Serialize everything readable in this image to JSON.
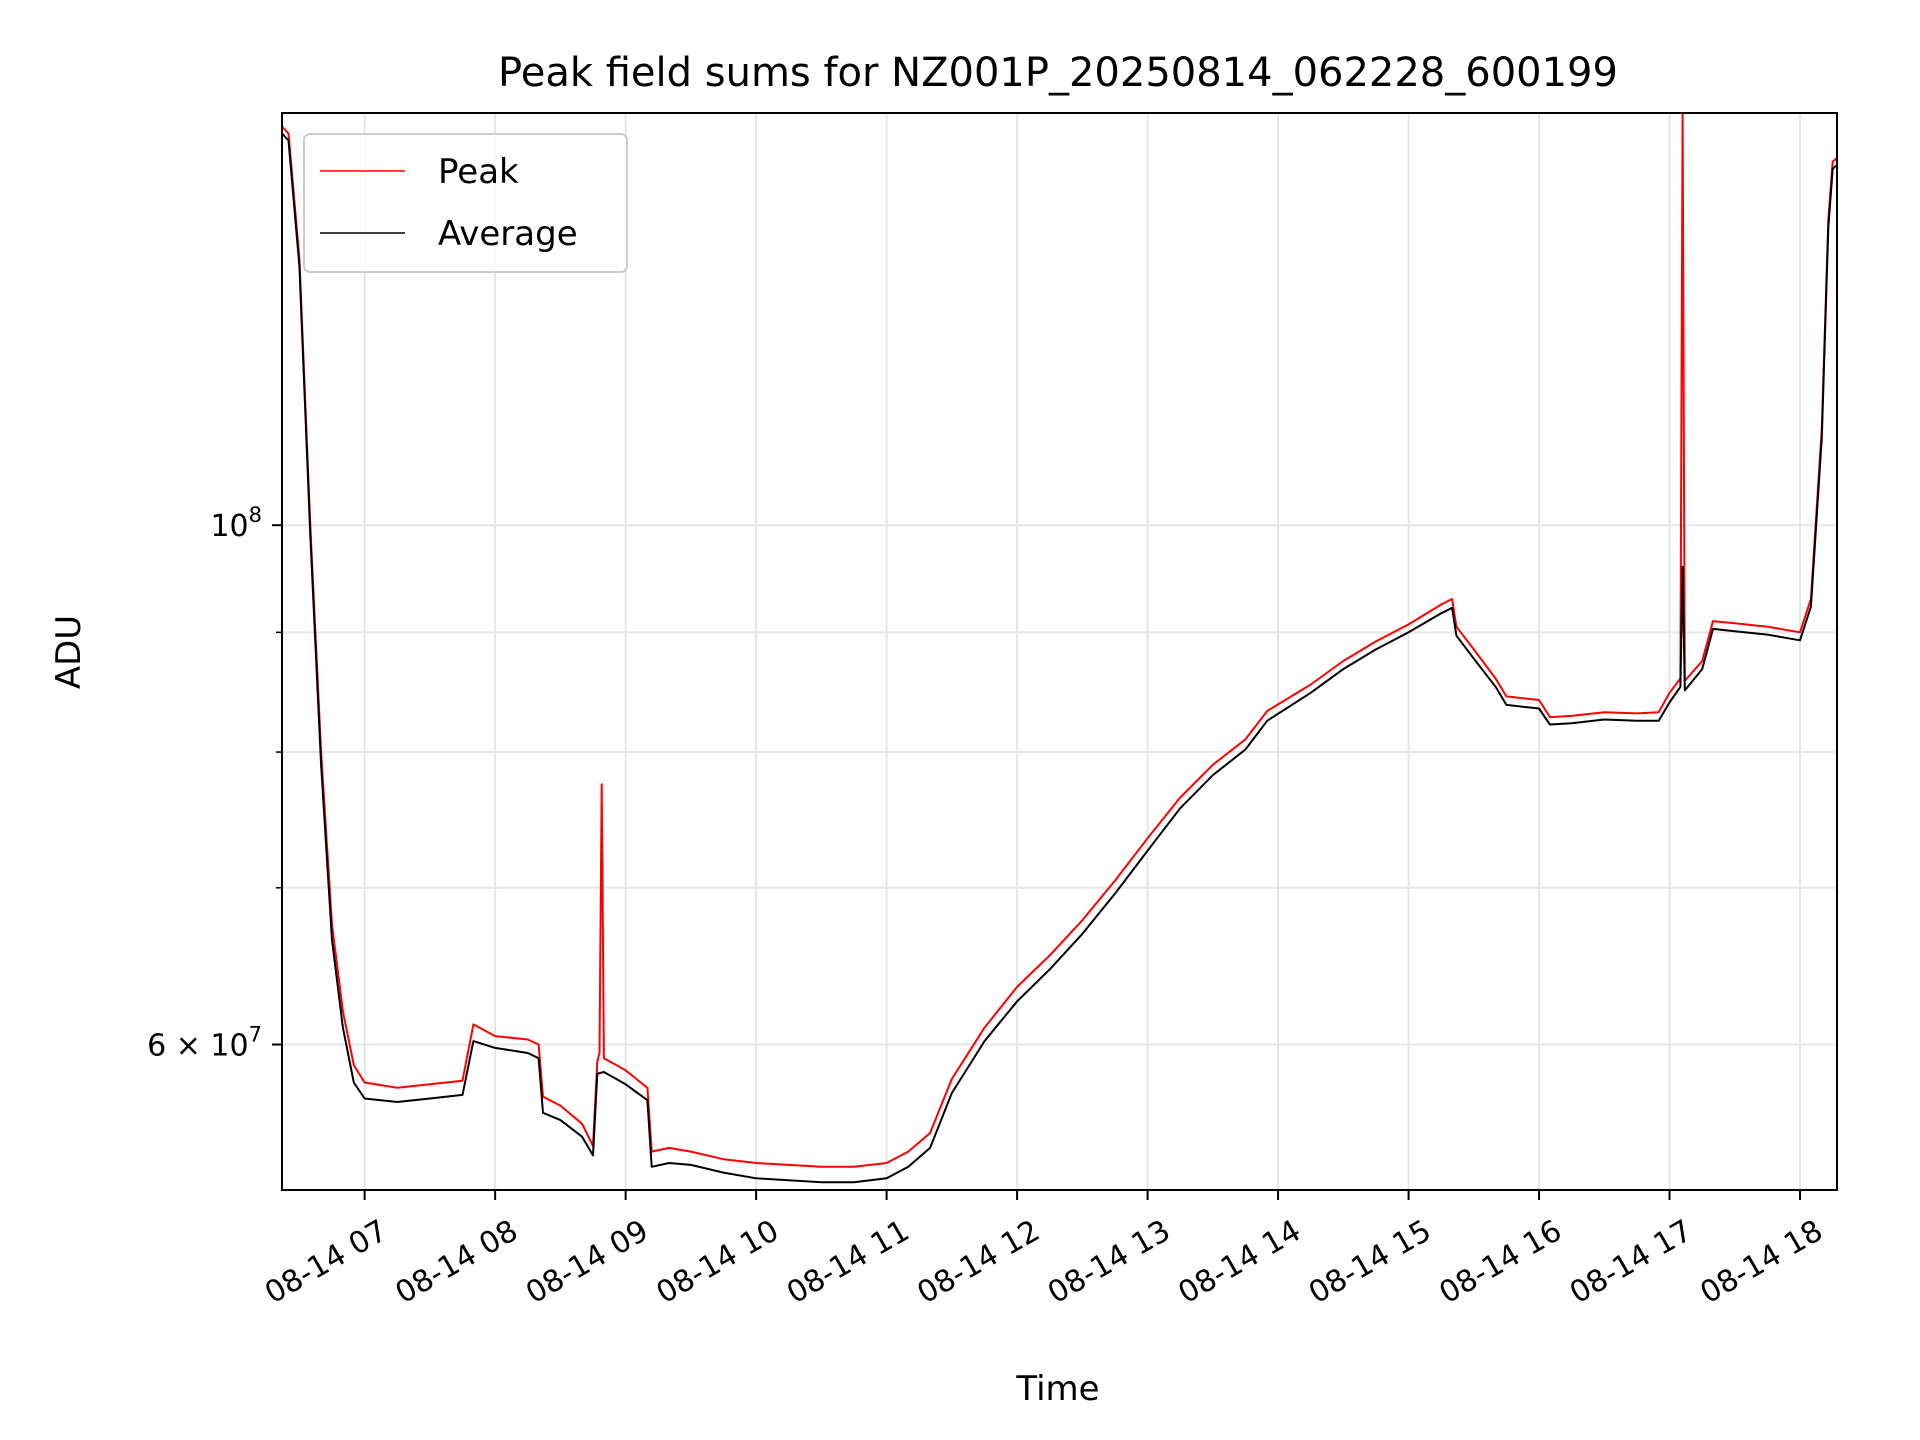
{
  "chart_data": {
    "type": "line",
    "title": "Peak field sums for NZ001P_20250814_062228_600199",
    "xlabel": "Time",
    "ylabel": "ADU",
    "yscale": "log",
    "xlim": [
      "2025-08-14 06:22",
      "2025-08-14 18:17"
    ],
    "ylim": [
      52000000,
      150000000
    ],
    "grid": true,
    "legend_position": "top-left",
    "x_ticks": [
      {
        "value": "2025-08-14 07:00",
        "label": "08-14 07"
      },
      {
        "value": "2025-08-14 08:00",
        "label": "08-14 08"
      },
      {
        "value": "2025-08-14 09:00",
        "label": "08-14 09"
      },
      {
        "value": "2025-08-14 10:00",
        "label": "08-14 10"
      },
      {
        "value": "2025-08-14 11:00",
        "label": "08-14 11"
      },
      {
        "value": "2025-08-14 12:00",
        "label": "08-14 12"
      },
      {
        "value": "2025-08-14 13:00",
        "label": "08-14 13"
      },
      {
        "value": "2025-08-14 14:00",
        "label": "08-14 14"
      },
      {
        "value": "2025-08-14 15:00",
        "label": "08-14 15"
      },
      {
        "value": "2025-08-14 16:00",
        "label": "08-14 16"
      },
      {
        "value": "2025-08-14 17:00",
        "label": "08-14 17"
      },
      {
        "value": "2025-08-14 18:00",
        "label": "08-14 18"
      }
    ],
    "y_ticks": [
      {
        "value": 100000000,
        "label_base": "10",
        "label_exp": "8"
      },
      {
        "value": 60000000,
        "label_base": "6 × 10",
        "label_exp": "7"
      }
    ],
    "y_minor_ticks": [
      70000000,
      80000000,
      90000000
    ],
    "series": [
      {
        "name": "Peak",
        "color": "#ff0000",
        "points": [
          [
            "2025-08-14 06:22",
            148000000
          ],
          [
            "2025-08-14 06:25",
            147000000
          ],
          [
            "2025-08-14 06:30",
            130000000
          ],
          [
            "2025-08-14 06:35",
            100000000
          ],
          [
            "2025-08-14 06:40",
            80000000
          ],
          [
            "2025-08-14 06:45",
            67500000
          ],
          [
            "2025-08-14 06:50",
            62000000
          ],
          [
            "2025-08-14 06:55",
            58800000
          ],
          [
            "2025-08-14 07:00",
            57800000
          ],
          [
            "2025-08-14 07:15",
            57500000
          ],
          [
            "2025-08-14 07:30",
            57700000
          ],
          [
            "2025-08-14 07:45",
            57900000
          ],
          [
            "2025-08-14 07:50",
            61200000
          ],
          [
            "2025-08-14 08:00",
            60500000
          ],
          [
            "2025-08-14 08:15",
            60300000
          ],
          [
            "2025-08-14 08:20",
            60000000
          ],
          [
            "2025-08-14 08:22",
            57000000
          ],
          [
            "2025-08-14 08:30",
            56500000
          ],
          [
            "2025-08-14 08:40",
            55500000
          ],
          [
            "2025-08-14 08:45",
            54300000
          ],
          [
            "2025-08-14 08:47",
            59000000
          ],
          [
            "2025-08-14 08:48",
            59500000
          ],
          [
            "2025-08-14 08:49",
            77500000
          ],
          [
            "2025-08-14 08:50",
            59200000
          ],
          [
            "2025-08-14 09:00",
            58500000
          ],
          [
            "2025-08-14 09:10",
            57500000
          ],
          [
            "2025-08-14 09:12",
            54000000
          ],
          [
            "2025-08-14 09:20",
            54200000
          ],
          [
            "2025-08-14 09:30",
            54000000
          ],
          [
            "2025-08-14 09:45",
            53600000
          ],
          [
            "2025-08-14 10:00",
            53400000
          ],
          [
            "2025-08-14 10:15",
            53300000
          ],
          [
            "2025-08-14 10:30",
            53200000
          ],
          [
            "2025-08-14 10:45",
            53200000
          ],
          [
            "2025-08-14 11:00",
            53400000
          ],
          [
            "2025-08-14 11:10",
            54000000
          ],
          [
            "2025-08-14 11:20",
            55000000
          ],
          [
            "2025-08-14 11:30",
            58000000
          ],
          [
            "2025-08-14 11:45",
            61000000
          ],
          [
            "2025-08-14 12:00",
            63500000
          ],
          [
            "2025-08-14 12:15",
            65500000
          ],
          [
            "2025-08-14 12:30",
            67800000
          ],
          [
            "2025-08-14 12:45",
            70500000
          ],
          [
            "2025-08-14 13:00",
            73500000
          ],
          [
            "2025-08-14 13:15",
            76500000
          ],
          [
            "2025-08-14 13:30",
            79000000
          ],
          [
            "2025-08-14 13:45",
            81000000
          ],
          [
            "2025-08-14 13:55",
            83300000
          ],
          [
            "2025-08-14 14:15",
            85500000
          ],
          [
            "2025-08-14 14:30",
            87500000
          ],
          [
            "2025-08-14 14:45",
            89200000
          ],
          [
            "2025-08-14 15:00",
            90700000
          ],
          [
            "2025-08-14 15:15",
            92500000
          ],
          [
            "2025-08-14 15:20",
            93000000
          ],
          [
            "2025-08-14 15:22",
            90500000
          ],
          [
            "2025-08-14 15:30",
            88500000
          ],
          [
            "2025-08-14 15:40",
            86000000
          ],
          [
            "2025-08-14 15:45",
            84500000
          ],
          [
            "2025-08-14 16:00",
            84200000
          ],
          [
            "2025-08-14 16:05",
            82800000
          ],
          [
            "2025-08-14 16:15",
            82900000
          ],
          [
            "2025-08-14 16:30",
            83200000
          ],
          [
            "2025-08-14 16:45",
            83100000
          ],
          [
            "2025-08-14 16:55",
            83200000
          ],
          [
            "2025-08-14 17:00",
            84800000
          ],
          [
            "2025-08-14 17:05",
            86000000
          ],
          [
            "2025-08-14 17:06",
            150000000
          ],
          [
            "2025-08-14 17:07",
            85800000
          ],
          [
            "2025-08-14 17:15",
            87500000
          ],
          [
            "2025-08-14 17:20",
            91000000
          ],
          [
            "2025-08-14 17:30",
            90800000
          ],
          [
            "2025-08-14 17:45",
            90500000
          ],
          [
            "2025-08-14 18:00",
            90000000
          ],
          [
            "2025-08-14 18:05",
            93000000
          ],
          [
            "2025-08-14 18:10",
            110000000
          ],
          [
            "2025-08-14 18:13",
            135000000
          ],
          [
            "2025-08-14 18:15",
            143000000
          ],
          [
            "2025-08-14 18:17",
            143500000
          ]
        ]
      },
      {
        "name": "Average",
        "color": "#000000",
        "points": [
          [
            "2025-08-14 06:22",
            147000000
          ],
          [
            "2025-08-14 06:25",
            146000000
          ],
          [
            "2025-08-14 06:30",
            129000000
          ],
          [
            "2025-08-14 06:35",
            99000000
          ],
          [
            "2025-08-14 06:40",
            79000000
          ],
          [
            "2025-08-14 06:45",
            66500000
          ],
          [
            "2025-08-14 06:50",
            61000000
          ],
          [
            "2025-08-14 06:55",
            57800000
          ],
          [
            "2025-08-14 07:00",
            56900000
          ],
          [
            "2025-08-14 07:15",
            56700000
          ],
          [
            "2025-08-14 07:30",
            56900000
          ],
          [
            "2025-08-14 07:45",
            57100000
          ],
          [
            "2025-08-14 07:50",
            60200000
          ],
          [
            "2025-08-14 08:00",
            59800000
          ],
          [
            "2025-08-14 08:15",
            59500000
          ],
          [
            "2025-08-14 08:20",
            59200000
          ],
          [
            "2025-08-14 08:22",
            56100000
          ],
          [
            "2025-08-14 08:30",
            55700000
          ],
          [
            "2025-08-14 08:40",
            54800000
          ],
          [
            "2025-08-14 08:45",
            53800000
          ],
          [
            "2025-08-14 08:47",
            58300000
          ],
          [
            "2025-08-14 08:50",
            58400000
          ],
          [
            "2025-08-14 09:00",
            57700000
          ],
          [
            "2025-08-14 09:10",
            56800000
          ],
          [
            "2025-08-14 09:12",
            53200000
          ],
          [
            "2025-08-14 09:20",
            53400000
          ],
          [
            "2025-08-14 09:30",
            53300000
          ],
          [
            "2025-08-14 09:45",
            52900000
          ],
          [
            "2025-08-14 10:00",
            52600000
          ],
          [
            "2025-08-14 10:15",
            52500000
          ],
          [
            "2025-08-14 10:30",
            52400000
          ],
          [
            "2025-08-14 10:45",
            52400000
          ],
          [
            "2025-08-14 11:00",
            52600000
          ],
          [
            "2025-08-14 11:10",
            53200000
          ],
          [
            "2025-08-14 11:20",
            54200000
          ],
          [
            "2025-08-14 11:30",
            57200000
          ],
          [
            "2025-08-14 11:45",
            60200000
          ],
          [
            "2025-08-14 12:00",
            62600000
          ],
          [
            "2025-08-14 12:15",
            64600000
          ],
          [
            "2025-08-14 12:30",
            66900000
          ],
          [
            "2025-08-14 12:45",
            69600000
          ],
          [
            "2025-08-14 13:00",
            72600000
          ],
          [
            "2025-08-14 13:15",
            75700000
          ],
          [
            "2025-08-14 13:30",
            78200000
          ],
          [
            "2025-08-14 13:45",
            80200000
          ],
          [
            "2025-08-14 13:55",
            82500000
          ],
          [
            "2025-08-14 14:15",
            84800000
          ],
          [
            "2025-08-14 14:30",
            86800000
          ],
          [
            "2025-08-14 14:45",
            88500000
          ],
          [
            "2025-08-14 15:00",
            90000000
          ],
          [
            "2025-08-14 15:15",
            91700000
          ],
          [
            "2025-08-14 15:20",
            92200000
          ],
          [
            "2025-08-14 15:22",
            89700000
          ],
          [
            "2025-08-14 15:30",
            87700000
          ],
          [
            "2025-08-14 15:40",
            85300000
          ],
          [
            "2025-08-14 15:45",
            83800000
          ],
          [
            "2025-08-14 16:00",
            83500000
          ],
          [
            "2025-08-14 16:05",
            82200000
          ],
          [
            "2025-08-14 16:15",
            82300000
          ],
          [
            "2025-08-14 16:30",
            82600000
          ],
          [
            "2025-08-14 16:45",
            82500000
          ],
          [
            "2025-08-14 16:55",
            82500000
          ],
          [
            "2025-08-14 17:00",
            84000000
          ],
          [
            "2025-08-14 17:05",
            85300000
          ],
          [
            "2025-08-14 17:06",
            96000000
          ],
          [
            "2025-08-14 17:07",
            85000000
          ],
          [
            "2025-08-14 17:15",
            86800000
          ],
          [
            "2025-08-14 17:20",
            90300000
          ],
          [
            "2025-08-14 17:30",
            90100000
          ],
          [
            "2025-08-14 17:45",
            89800000
          ],
          [
            "2025-08-14 18:00",
            89300000
          ],
          [
            "2025-08-14 18:05",
            92300000
          ],
          [
            "2025-08-14 18:10",
            109000000
          ],
          [
            "2025-08-14 18:13",
            134000000
          ],
          [
            "2025-08-14 18:15",
            142000000
          ],
          [
            "2025-08-14 18:17",
            142500000
          ]
        ]
      }
    ]
  }
}
